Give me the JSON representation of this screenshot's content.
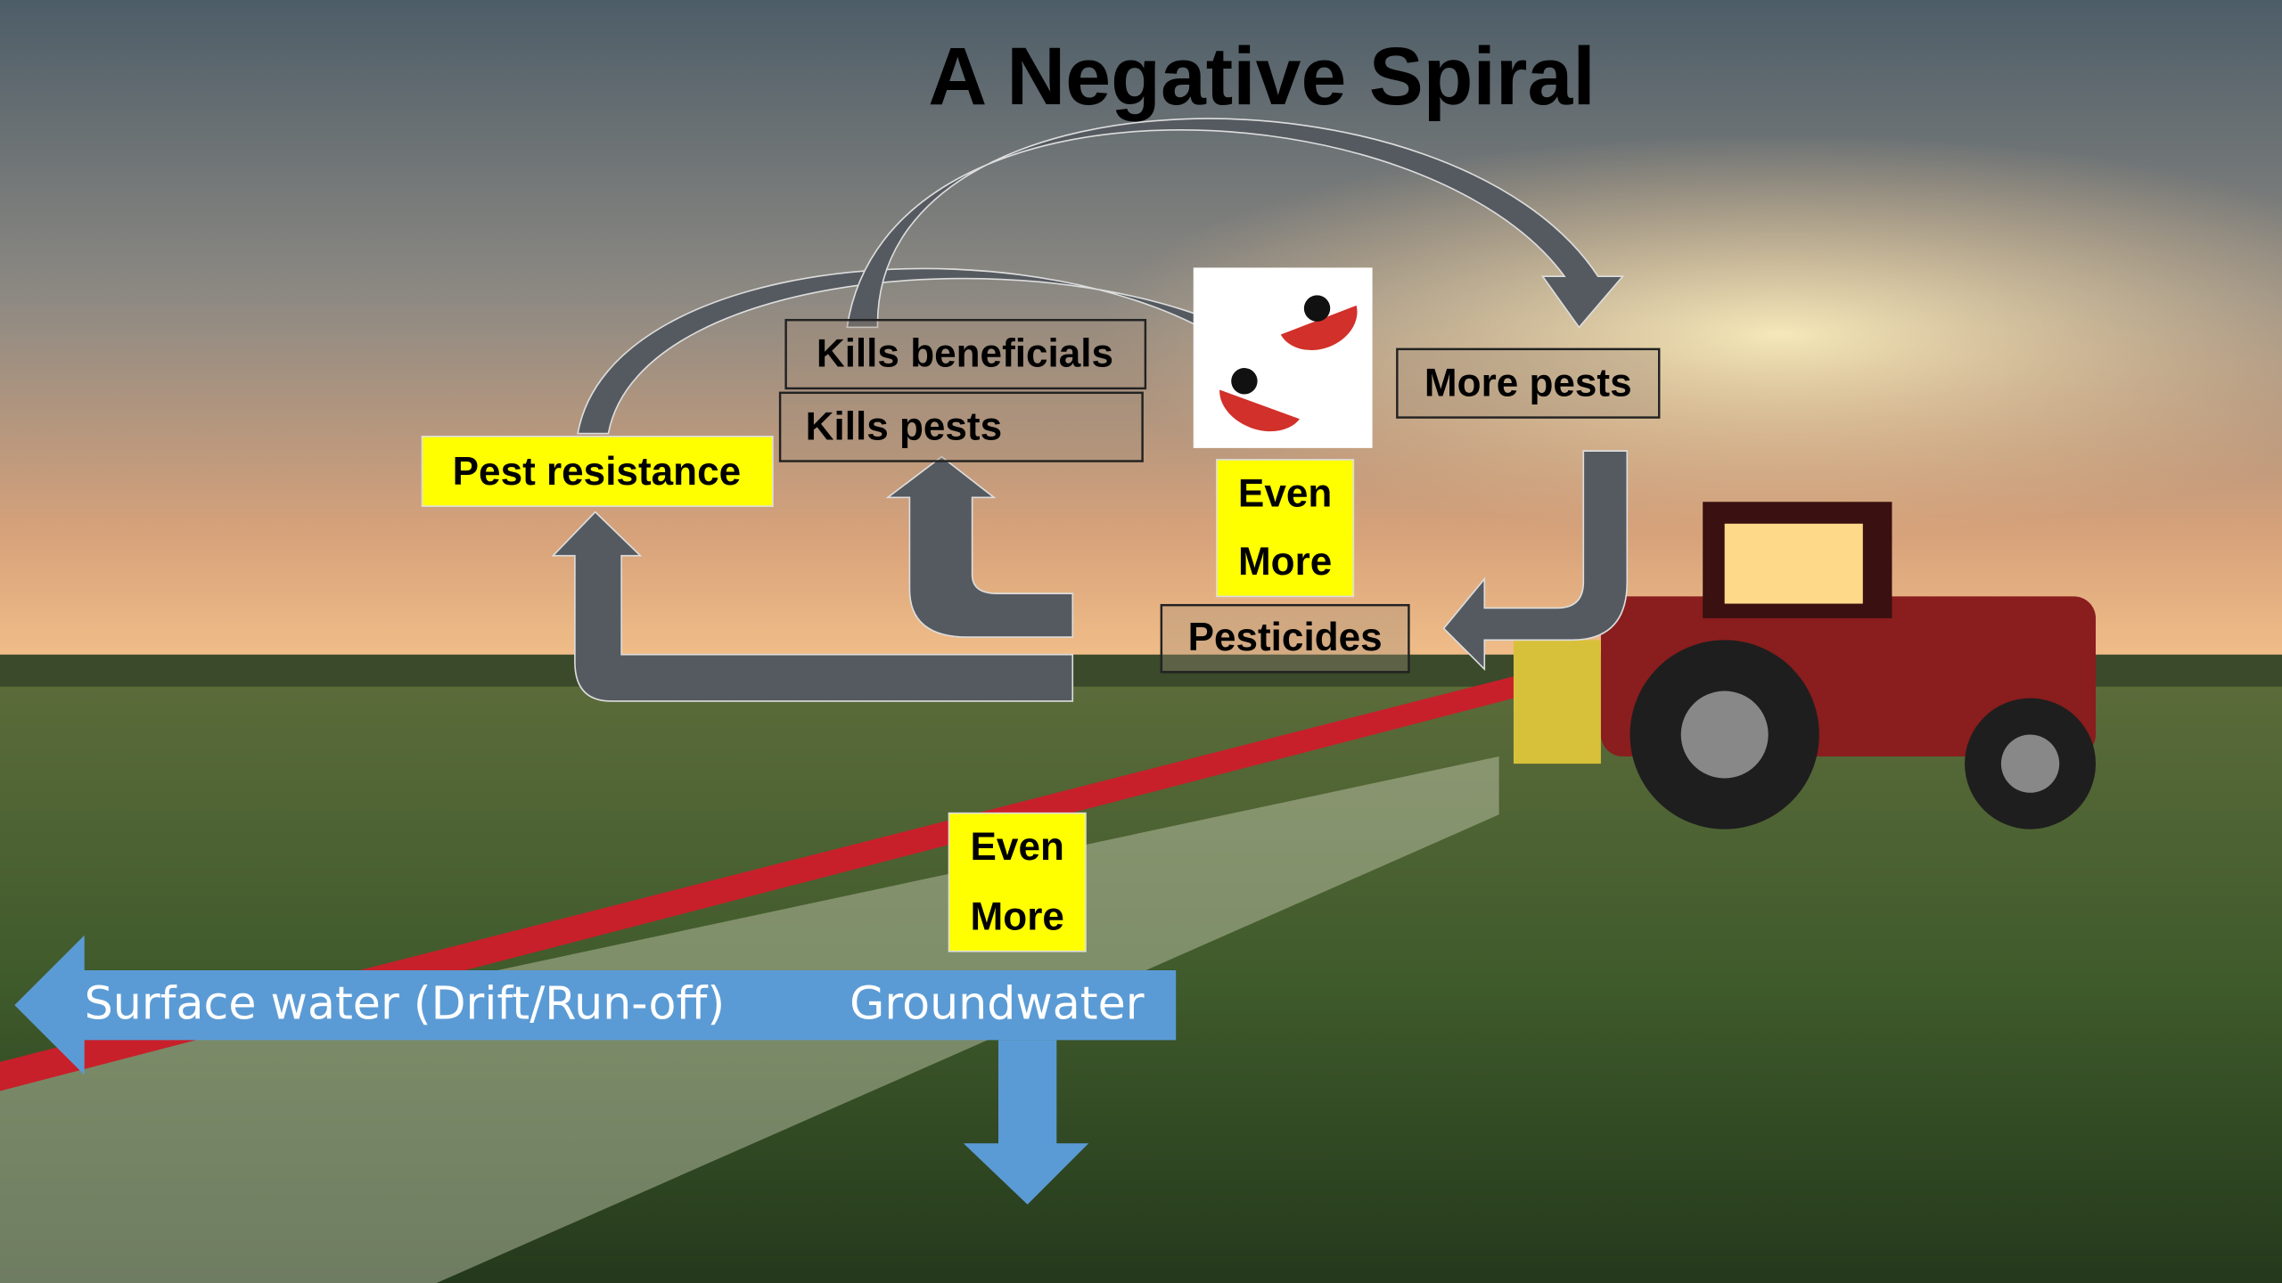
{
  "title": "A Negative Spiral",
  "labels": {
    "kills_beneficials": "Kills beneficials",
    "kills_pests": "Kills pests",
    "more_pests": "More pests",
    "pest_resistance": "Pest resistance",
    "even_more_top": [
      "Even",
      "More"
    ],
    "pesticides": "Pesticides",
    "even_more_bottom": [
      "Even",
      "More"
    ],
    "surface_water": "Surface water (Drift/Run-off)",
    "groundwater": "Groundwater"
  }
}
